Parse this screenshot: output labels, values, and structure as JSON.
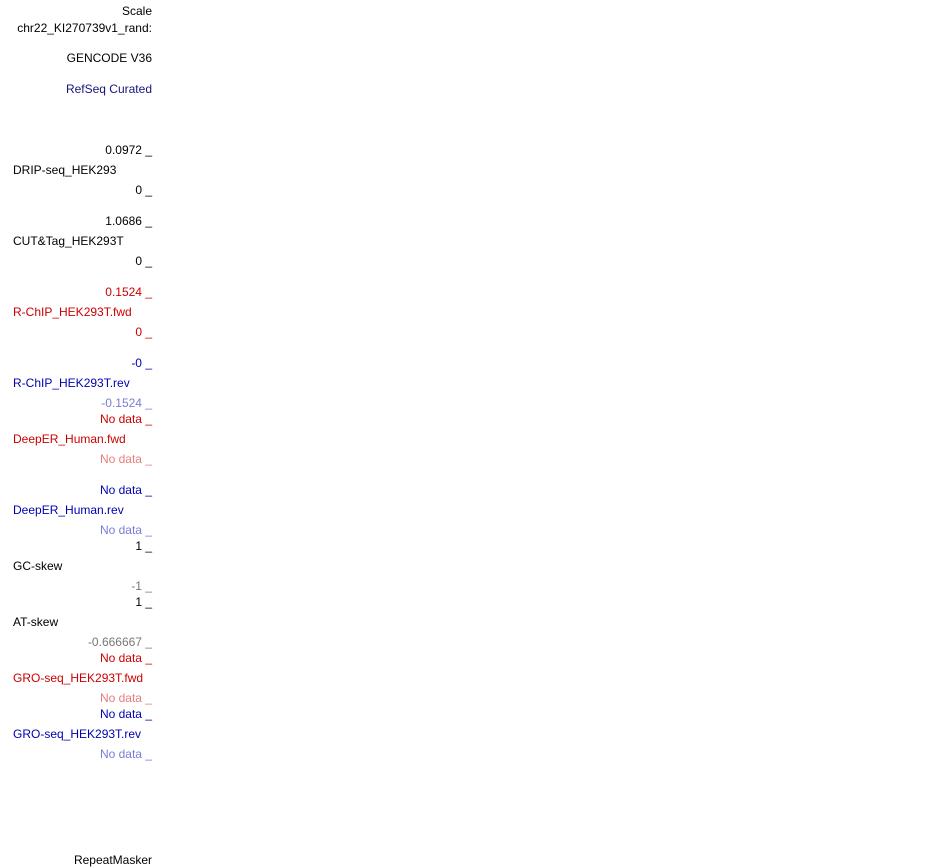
{
  "header": {
    "scale_label": "Scale",
    "chrom_label": "chr22_KI270739v1_rand:"
  },
  "tracks": {
    "gencode": "GENCODE V36",
    "refseq": "RefSeq Curated",
    "drip": {
      "max": "0.0972 _",
      "name": "DRIP-seq_HEK293",
      "min": "0 _"
    },
    "cuttag": {
      "max": "1.0686 _",
      "name": "CUT&Tag_HEK293T",
      "min": "0 _"
    },
    "rchip_fwd": {
      "max": "0.1524 _",
      "name": "R-ChIP_HEK293T.fwd",
      "min": "0 _"
    },
    "rchip_rev": {
      "max": "-0 _",
      "name": "R-ChIP_HEK293T.rev",
      "min": "-0.1524 _"
    },
    "deeper_fwd": {
      "max": "No data _",
      "name": "DeepER_Human.fwd",
      "min": "No data _"
    },
    "deeper_rev": {
      "max": "No data _",
      "name": "DeepER_Human.rev",
      "min": "No data _"
    },
    "gc_skew": {
      "max": "1 _",
      "name": "GC-skew",
      "min": "-1 _"
    },
    "at_skew": {
      "max": "1 _",
      "name": "AT-skew",
      "min": "-0.666667 _"
    },
    "gro_fwd": {
      "max": "No data _",
      "name": "GRO-seq_HEK293T.fwd",
      "min": "No data _"
    },
    "gro_rev": {
      "max": "No data _",
      "name": "GRO-seq_HEK293T.rev",
      "min": "No data _"
    },
    "repeatmasker": "RepeatMasker"
  },
  "colors": {
    "black": "#000000",
    "red": "#cc0000",
    "light_red": "#e87d7d",
    "blue": "#0000b0",
    "light_blue": "#7b7bd8",
    "gray": "#777777",
    "navy": "#14147d"
  }
}
